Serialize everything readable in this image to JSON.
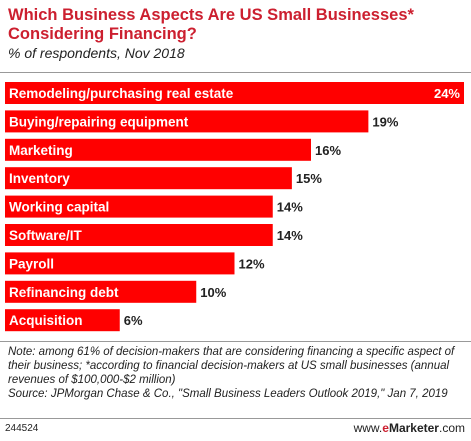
{
  "header": {
    "title": "Which Business Aspects Are US Small Businesses* Considering Financing?",
    "subtitle": "% of respondents, Nov 2018"
  },
  "colors": {
    "bar": "#ff0000",
    "title": "#cc1f2f"
  },
  "chart_data": {
    "type": "bar",
    "orientation": "horizontal",
    "title": "Which Business Aspects Are US Small Businesses* Considering Financing?",
    "subtitle": "% of respondents, Nov 2018",
    "categories": [
      "Remodeling/purchasing real estate",
      "Buying/repairing equipment",
      "Marketing",
      "Inventory",
      "Working capital",
      "Software/IT",
      "Payroll",
      "Refinancing debt",
      "Acquisition"
    ],
    "values": [
      24,
      19,
      16,
      15,
      14,
      14,
      12,
      10,
      6
    ],
    "value_labels": [
      "24%",
      "19%",
      "16%",
      "15%",
      "14%",
      "14%",
      "12%",
      "10%",
      "6%"
    ],
    "xlim": [
      0,
      24
    ],
    "grid": false
  },
  "notes": {
    "line1": "Note: among 61% of decision-makers that are considering financing a specific aspect of their business; *according to financial decision-makers at US small businesses (annual revenues of $100,000-$2 million)",
    "line2": "Source: JPMorgan Chase & Co., \"Small Business Leaders Outlook 2019,\" Jan 7, 2019"
  },
  "footer": {
    "id": "244524",
    "brand_prefix": "www.",
    "brand_e": "e",
    "brand_name": "Marketer",
    "brand_suffix": ".com"
  }
}
